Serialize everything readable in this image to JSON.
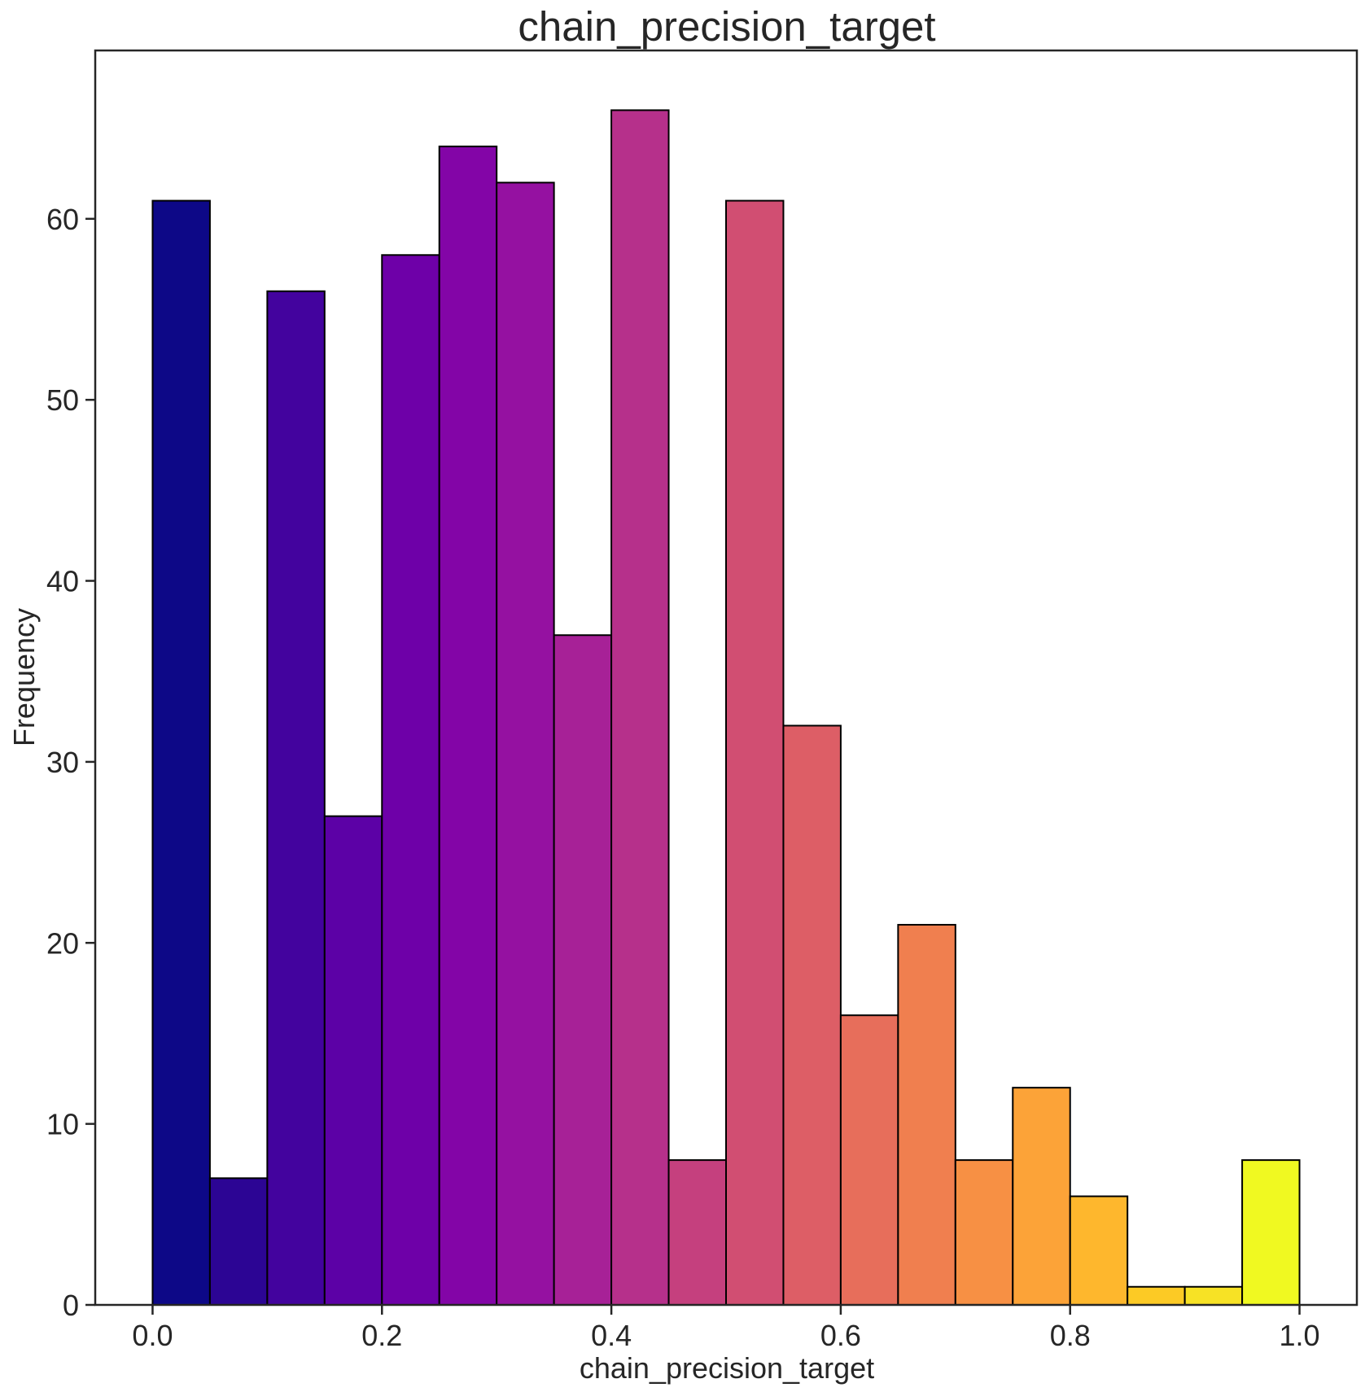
{
  "chart_data": {
    "type": "bar",
    "subtype": "histogram",
    "title": "chain_precision_target",
    "xlabel": "chain_precision_target",
    "ylabel": "Frequency",
    "xlim": [
      -0.05,
      1.05
    ],
    "ylim": [
      0,
      69.3
    ],
    "xticks": [
      0.0,
      0.2,
      0.4,
      0.6,
      0.8,
      1.0
    ],
    "xtick_labels": [
      "0.0",
      "0.2",
      "0.4",
      "0.6",
      "0.8",
      "1.0"
    ],
    "yticks": [
      0,
      10,
      20,
      30,
      40,
      50,
      60
    ],
    "ytick_labels": [
      "0",
      "10",
      "20",
      "30",
      "40",
      "50",
      "60"
    ],
    "bin_width": 0.05,
    "bin_edges": [
      0.0,
      0.05,
      0.1,
      0.15,
      0.2,
      0.25,
      0.3,
      0.35,
      0.4,
      0.45,
      0.5,
      0.55,
      0.6,
      0.65,
      0.7,
      0.75,
      0.8,
      0.85,
      0.9,
      0.95,
      1.0
    ],
    "values": [
      61,
      7,
      56,
      27,
      58,
      64,
      62,
      37,
      66,
      8,
      61,
      32,
      16,
      21,
      8,
      12,
      6,
      1,
      1,
      8
    ],
    "colors": [
      "#0d0887",
      "#2c0594",
      "#43039e",
      "#5c01a6",
      "#6e00a8",
      "#8305a7",
      "#9511a1",
      "#a72197",
      "#b6308b",
      "#c5407e",
      "#d14e72",
      "#dd5e66",
      "#e76e5b",
      "#f07f4f",
      "#f79044",
      "#fca338",
      "#feb72d",
      "#fcca25",
      "#f7e225",
      "#f0f921"
    ],
    "grid": false,
    "legend": "none"
  }
}
